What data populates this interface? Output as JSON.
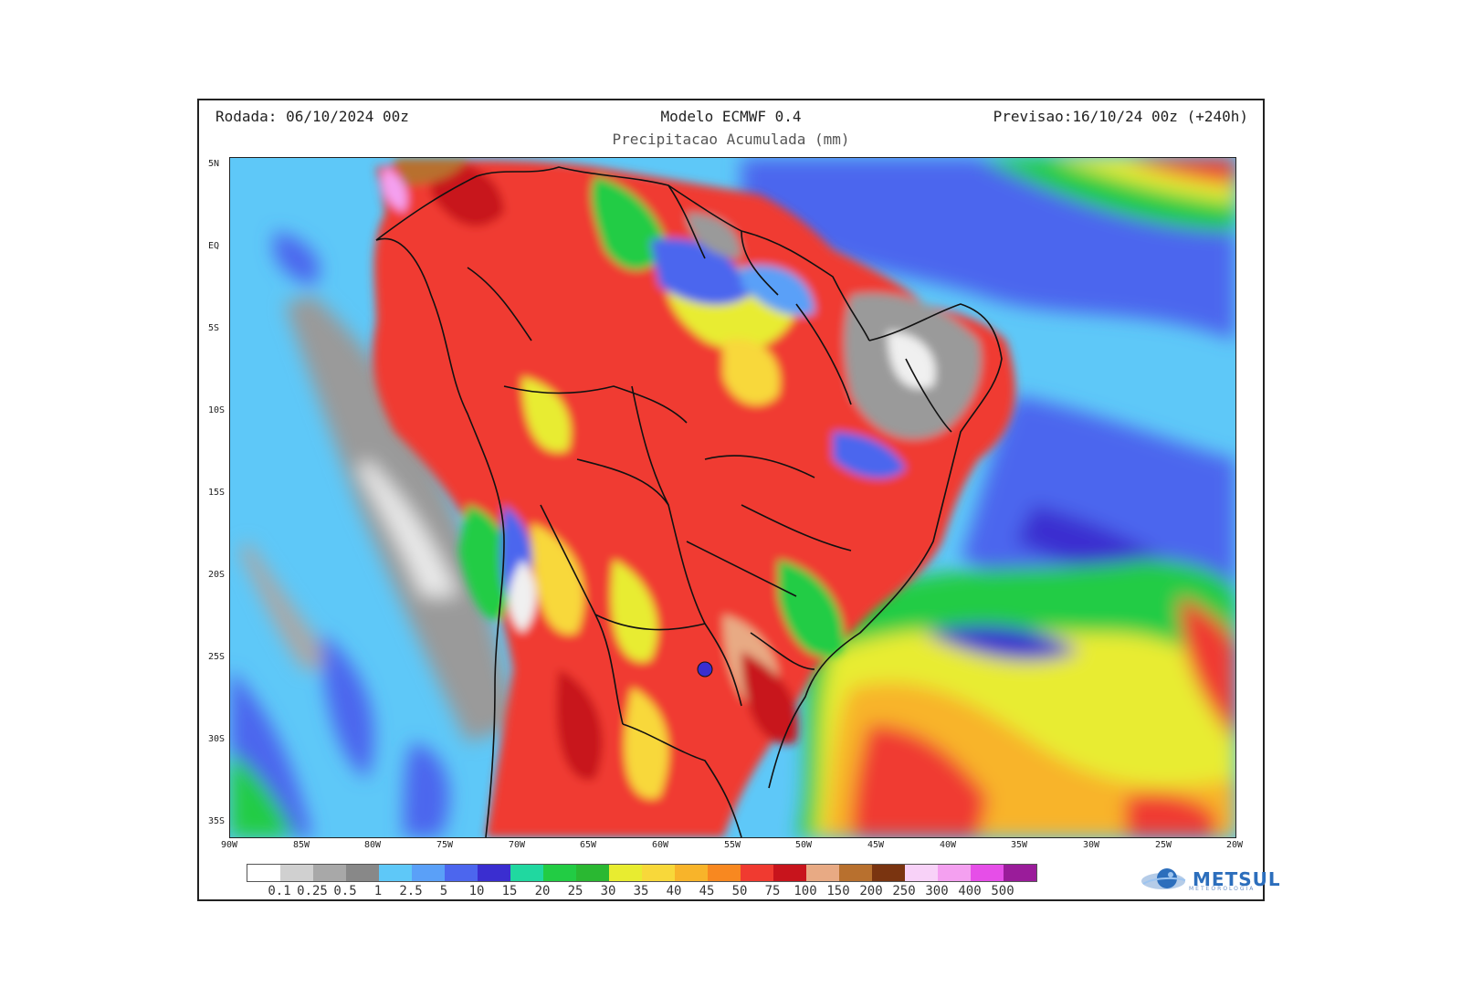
{
  "header": {
    "run": "Rodada: 06/10/2024 00z",
    "model": "Modelo ECMWF 0.4",
    "forecast": "Previsao:16/10/24 00z (+240h)",
    "subtitle": "Precipitacao Acumulada (mm)"
  },
  "map": {
    "lat_labels": [
      "5N",
      "EQ",
      "5S",
      "10S",
      "15S",
      "20S",
      "25S",
      "30S",
      "35S"
    ],
    "lon_labels": [
      "90W",
      "85W",
      "80W",
      "75W",
      "70W",
      "65W",
      "60W",
      "55W",
      "50W",
      "45W",
      "40W",
      "35W",
      "30W",
      "25W",
      "20W"
    ],
    "extent": {
      "lon_min": -90,
      "lon_max": -20,
      "lat_min": -35,
      "lat_max": 5
    }
  },
  "legend": {
    "unit": "mm",
    "labels": [
      "0.1",
      "0.25",
      "0.5",
      "1",
      "2.5",
      "5",
      "10",
      "15",
      "20",
      "25",
      "30",
      "35",
      "40",
      "45",
      "50",
      "75",
      "100",
      "150",
      "200",
      "250",
      "300",
      "400",
      "500"
    ],
    "colors": [
      "#ffffff",
      "#d0d0d0",
      "#a8a8a8",
      "#888888",
      "#5ec8f8",
      "#5aa0f8",
      "#4c66ee",
      "#3a2ed0",
      "#20d8a0",
      "#22cc44",
      "#2ab832",
      "#e8ec30",
      "#f8d83a",
      "#f8b42a",
      "#f88820",
      "#f03a30",
      "#c8141c",
      "#e8aa84",
      "#b8702e",
      "#7a3410",
      "#f8d2f8",
      "#f4a0f0",
      "#e64ee8",
      "#9a1c9a"
    ]
  },
  "logo": {
    "text": "METSUL",
    "sub": "METEOROLOGIA"
  }
}
